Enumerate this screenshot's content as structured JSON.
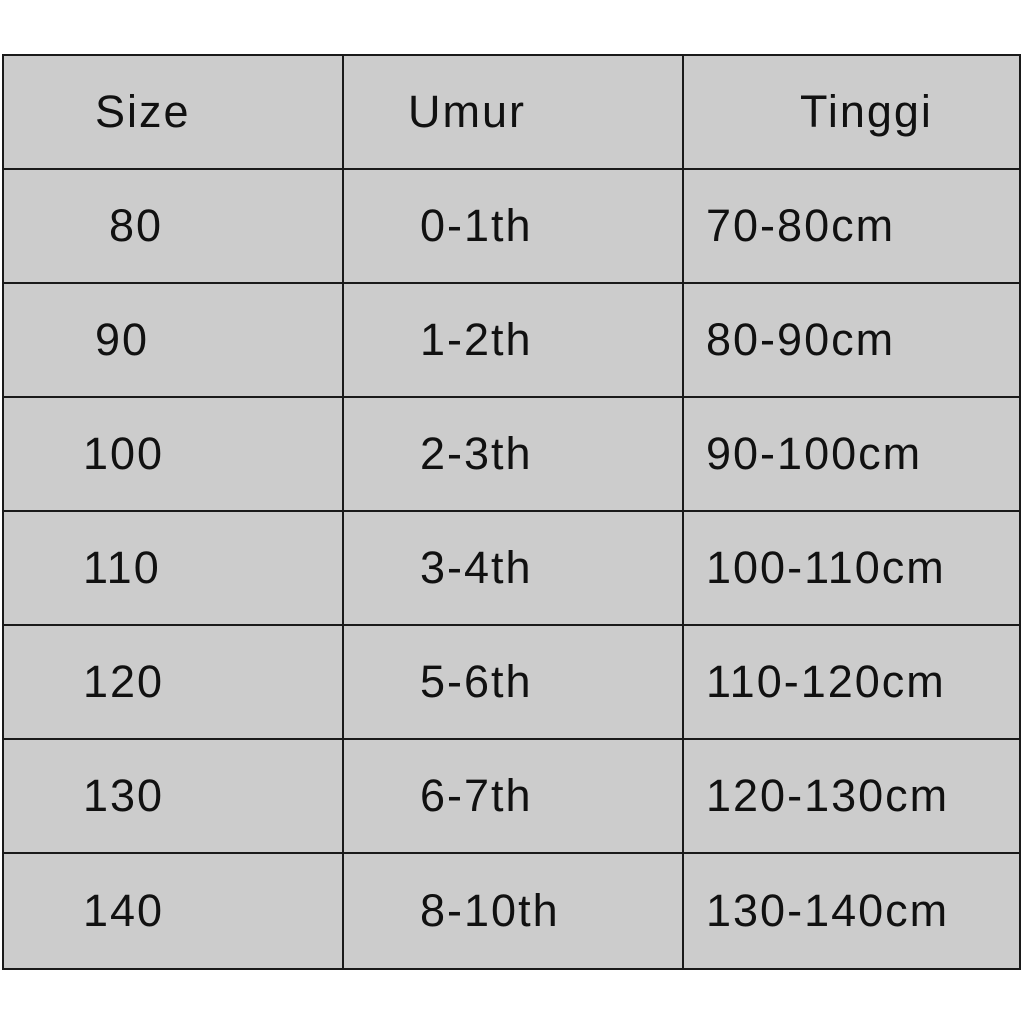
{
  "table": {
    "headers": [
      "Size",
      "Umur",
      "Tinggi"
    ],
    "rows": [
      [
        "80",
        "0-1th",
        "70-80cm"
      ],
      [
        "90",
        "1-2th",
        "80-90cm"
      ],
      [
        "100",
        "2-3th",
        "90-100cm"
      ],
      [
        "110",
        "3-4th",
        "100-110cm"
      ],
      [
        "120",
        "5-6th",
        "110-120cm"
      ],
      [
        "130",
        "6-7th",
        "120-130cm"
      ],
      [
        "140",
        "8-10th",
        "130-140cm"
      ]
    ],
    "background_color": "#cccccc",
    "border_color": "#1a1a1a"
  }
}
